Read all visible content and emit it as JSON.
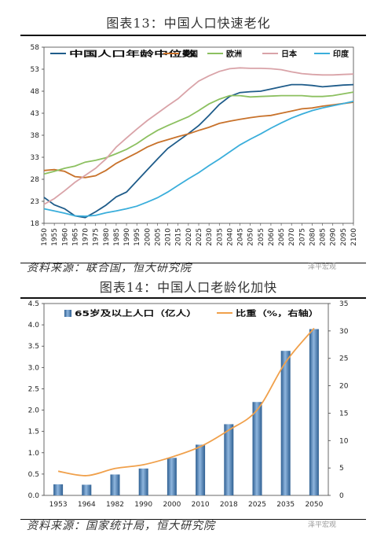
{
  "fig1": {
    "title": "图表13：中国人口快速老化",
    "source": "资料来源：联合国，恒大研究院",
    "watermark": "泽平宏观"
  },
  "fig2": {
    "title": "图表14：中国人口老龄化加快",
    "source": "资料来源：国家统计局，恒大研究院",
    "watermark": "泽平宏观"
  },
  "colors": {
    "china": "#1f5c8a",
    "usa": "#c8722b",
    "europe": "#8cc060",
    "japan": "#d9a3a8",
    "india": "#3aaedb",
    "bar": "#3d78b4",
    "ratio": "#f0a04b"
  },
  "chart_data": [
    {
      "type": "line",
      "title": "中国人口快速老化",
      "x": [
        1950,
        1955,
        1960,
        1965,
        1970,
        1975,
        1980,
        1985,
        1990,
        1995,
        2000,
        2005,
        2010,
        2015,
        2020,
        2025,
        2030,
        2035,
        2040,
        2045,
        2050,
        2055,
        2060,
        2065,
        2070,
        2075,
        2080,
        2085,
        2090,
        2095,
        2100
      ],
      "ylim": [
        18,
        58
      ],
      "yticks": [
        18,
        23,
        28,
        33,
        38,
        43,
        48,
        53,
        58
      ],
      "legend": "top",
      "series": [
        {
          "name": "中国人口年龄中位数",
          "color": "china",
          "values": [
            23.9,
            22.2,
            21.3,
            19.7,
            19.3,
            20.6,
            22.1,
            24.0,
            25.1,
            27.6,
            30.1,
            32.6,
            35.0,
            36.7,
            38.4,
            40.2,
            42.5,
            45.0,
            46.8,
            47.7,
            47.9,
            48.0,
            48.5,
            49.0,
            49.5,
            49.5,
            49.3,
            49.0,
            49.2,
            49.4,
            49.5
          ]
        },
        {
          "name": "美国",
          "color": "usa",
          "values": [
            30.0,
            30.2,
            29.8,
            28.6,
            28.4,
            28.8,
            30.0,
            31.6,
            32.8,
            34.0,
            35.3,
            36.3,
            37.0,
            37.7,
            38.3,
            39.1,
            39.8,
            40.7,
            41.2,
            41.6,
            42.0,
            42.3,
            42.5,
            43.0,
            43.5,
            44.0,
            44.2,
            44.6,
            44.9,
            45.2,
            45.5
          ]
        },
        {
          "name": "欧洲",
          "color": "europe",
          "values": [
            29.2,
            29.8,
            30.5,
            31.0,
            31.9,
            32.3,
            32.9,
            33.8,
            34.8,
            36.1,
            37.7,
            39.1,
            40.2,
            41.2,
            42.2,
            43.6,
            45.1,
            46.2,
            47.0,
            47.0,
            46.7,
            46.8,
            46.9,
            47.0,
            47.0,
            47.0,
            46.8,
            46.8,
            47.0,
            47.4,
            47.8
          ]
        },
        {
          "name": "日本",
          "color": "japan",
          "values": [
            22.3,
            23.6,
            25.4,
            27.3,
            28.9,
            30.5,
            32.6,
            35.3,
            37.4,
            39.4,
            41.3,
            43.0,
            44.7,
            46.3,
            48.4,
            50.3,
            51.5,
            52.5,
            53.1,
            53.3,
            53.2,
            53.2,
            53.1,
            52.9,
            52.4,
            52.0,
            51.8,
            51.7,
            51.7,
            51.8,
            51.9
          ]
        },
        {
          "name": "印度",
          "color": "india",
          "values": [
            21.3,
            20.8,
            20.3,
            19.7,
            19.6,
            19.8,
            20.4,
            20.8,
            21.3,
            21.9,
            22.8,
            23.8,
            25.1,
            26.6,
            28.1,
            29.5,
            31.1,
            32.6,
            34.2,
            35.8,
            37.1,
            38.3,
            39.6,
            40.8,
            41.9,
            42.8,
            43.6,
            44.2,
            44.7,
            45.2,
            45.7
          ]
        }
      ]
    },
    {
      "type": "bar",
      "title": "中国人口老龄化加快",
      "categories": [
        "1953",
        "1964",
        "1982",
        "1990",
        "2000",
        "2010",
        "2018",
        "2025",
        "2035",
        "2050"
      ],
      "legend": "top",
      "series": [
        {
          "name": "65岁及以上人口（亿人）",
          "axis": "left",
          "color": "bar",
          "values": [
            0.26,
            0.25,
            0.49,
            0.63,
            0.88,
            1.19,
            1.67,
            2.19,
            3.39,
            3.9
          ]
        },
        {
          "name": "比重（%，右轴）",
          "axis": "right",
          "type": "line",
          "color": "ratio",
          "values": [
            4.4,
            3.6,
            4.9,
            5.6,
            7.0,
            8.9,
            11.9,
            15.6,
            24.3,
            30.5
          ]
        }
      ],
      "ylim_left": [
        0,
        4.5
      ],
      "yticks_left": [
        0.0,
        0.5,
        1.0,
        1.5,
        2.0,
        2.5,
        3.0,
        3.5,
        4.0,
        4.5
      ],
      "ylim_right": [
        0,
        35
      ],
      "yticks_right": [
        0,
        5,
        10,
        15,
        20,
        25,
        30,
        35
      ]
    }
  ]
}
